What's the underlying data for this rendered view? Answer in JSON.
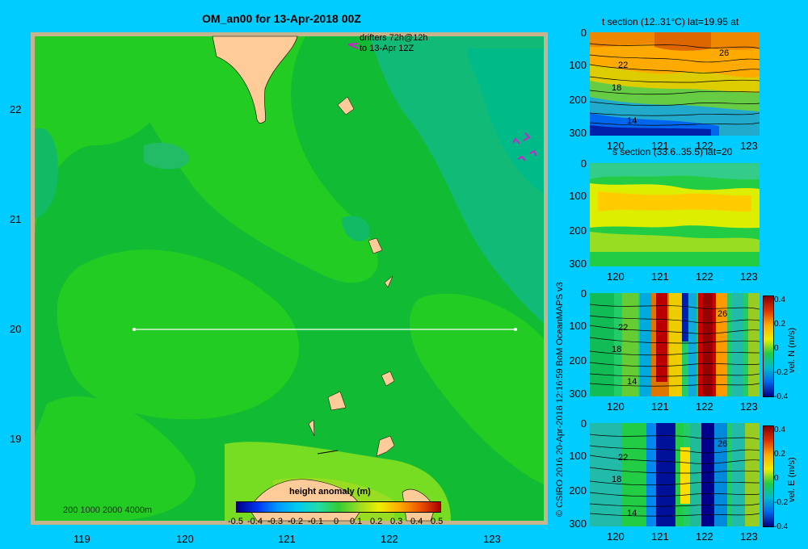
{
  "main_map": {
    "title": "OM_an00 for 13-Apr-2018 00Z",
    "drifters_line1": "drifters 72h@12h",
    "drifters_line2": "to 13-Apr 12Z",
    "depth_legend": "200  1000  2000  4000m",
    "x_ticks": [
      "119",
      "120",
      "121",
      "122",
      "123"
    ],
    "y_ticks": [
      "22",
      "21",
      "20",
      "19"
    ],
    "colorbar_title": "height anomaly (m)",
    "colorbar_ticks": [
      "-0.5",
      "-0.4",
      "-0.3",
      "-0.2",
      "-0.1",
      "0",
      "0.1",
      "0.2",
      "0.3",
      "0.4",
      "0.5"
    ]
  },
  "side_panels": [
    {
      "title": "t section (12..31°C) lat=19.95 at",
      "contour_labels": [
        "22",
        "18",
        "14",
        "26"
      ],
      "colorbar_label": "",
      "colorbar_ticks": []
    },
    {
      "title": "s section (33.6..35.5) lat=20",
      "contour_labels": [],
      "colorbar_label": "",
      "colorbar_ticks": []
    },
    {
      "title": "",
      "contour_labels": [
        "22",
        "18",
        "14",
        "26"
      ],
      "colorbar_label": "vel. N (m/s)",
      "colorbar_ticks": [
        "0.4",
        "0.2",
        "0",
        "-0.2",
        "-0.4"
      ]
    },
    {
      "title": "",
      "contour_labels": [
        "22",
        "18",
        "14",
        "26"
      ],
      "colorbar_label": "vel. E (m/s)",
      "colorbar_ticks": [
        "0.4",
        "0.2",
        "0",
        "-0.2",
        "-0.4"
      ]
    }
  ],
  "side_x_ticks": [
    "120",
    "121",
    "122",
    "123"
  ],
  "side_y_ticks": [
    "0",
    "100",
    "200",
    "300"
  ],
  "credit": "© CSIRO 2016   20-Apr-2018 12:16:59 BoM OceanMAPS v3",
  "chart_data": [
    {
      "type": "heatmap",
      "title": "OM_an00 for 13-Apr-2018 00Z",
      "variable": "height anomaly (m)",
      "x_range": [
        118.5,
        123.4
      ],
      "y_range": [
        18.3,
        22.7
      ],
      "x_ticks": [
        119,
        120,
        121,
        122,
        123
      ],
      "y_ticks": [
        19,
        20,
        21,
        22
      ],
      "colorbar_range": [
        -0.5,
        0.5
      ],
      "section_line": {
        "lat": 20,
        "lon_start": 119.5,
        "lon_end": 123.2
      },
      "depth_legend_m": [
        200,
        1000,
        2000,
        4000
      ]
    },
    {
      "type": "heatmap",
      "title": "t section (12..31°C) lat=19.95 at",
      "x_range": [
        119.5,
        123.3
      ],
      "y_range": [
        300,
        0
      ],
      "contour_labels": [
        26,
        22,
        18,
        14
      ]
    },
    {
      "type": "heatmap",
      "title": "s section (33.6..35.5) lat=20",
      "x_range": [
        119.5,
        123.3
      ],
      "y_range": [
        300,
        0
      ]
    },
    {
      "type": "heatmap",
      "variable": "vel. N (m/s)",
      "x_range": [
        119.5,
        123.3
      ],
      "y_range": [
        300,
        0
      ],
      "colorbar_range": [
        -0.4,
        0.4
      ]
    },
    {
      "type": "heatmap",
      "variable": "vel. E (m/s)",
      "x_range": [
        119.5,
        123.3
      ],
      "y_range": [
        300,
        0
      ],
      "colorbar_range": [
        -0.4,
        0.4
      ]
    }
  ]
}
